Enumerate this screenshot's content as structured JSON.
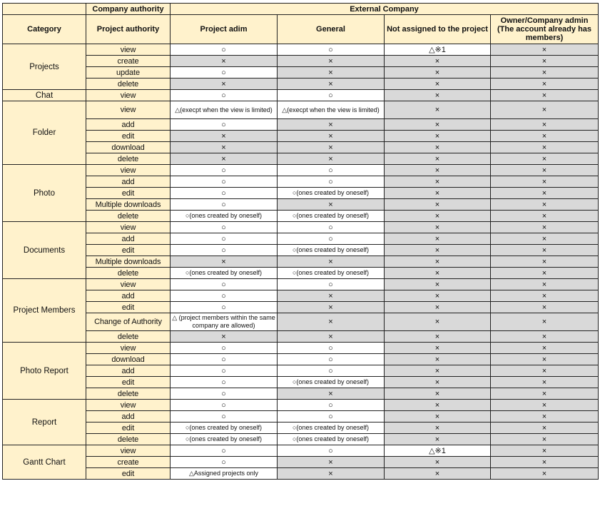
{
  "header": {
    "company_authority": "Company authority",
    "external_company": "External Company",
    "category": "Category",
    "project_authority": "Project authority",
    "columns": [
      "Project adim",
      "General",
      "Not assigned to the project",
      "Owner/Company admin (The account already has members)"
    ]
  },
  "colors": {
    "header_bg": "#fff2cc",
    "denied_bg": "#d9d9d9",
    "allowed_bg": "#ffffff"
  },
  "groups": [
    {
      "category": "Projects",
      "rows": [
        {
          "action": "view",
          "values": [
            "○",
            "○",
            "△※1",
            "×"
          ]
        },
        {
          "action": "create",
          "values": [
            "×",
            "×",
            "×",
            "×"
          ]
        },
        {
          "action": "update",
          "values": [
            "○",
            "×",
            "×",
            "×"
          ]
        },
        {
          "action": "delete",
          "values": [
            "×",
            "×",
            "×",
            "×"
          ]
        }
      ]
    },
    {
      "category": "Chat",
      "rows": [
        {
          "action": "view",
          "values": [
            "○",
            "○",
            "×",
            "×"
          ]
        }
      ]
    },
    {
      "category": "Folder",
      "rows": [
        {
          "action": "view",
          "values": [
            "△(execpt when the view is limited)",
            "△(execpt when the view is limited)",
            "×",
            "×"
          ]
        },
        {
          "action": "add",
          "values": [
            "○",
            "×",
            "×",
            "×"
          ]
        },
        {
          "action": "edit",
          "values": [
            "×",
            "×",
            "×",
            "×"
          ]
        },
        {
          "action": "download",
          "values": [
            "×",
            "×",
            "×",
            "×"
          ]
        },
        {
          "action": "delete",
          "values": [
            "×",
            "×",
            "×",
            "×"
          ]
        }
      ]
    },
    {
      "category": "Photo",
      "rows": [
        {
          "action": "view",
          "values": [
            "○",
            "○",
            "×",
            "×"
          ]
        },
        {
          "action": "add",
          "values": [
            "○",
            "○",
            "×",
            "×"
          ]
        },
        {
          "action": "edit",
          "values": [
            "○",
            "○(ones created by oneself)",
            "×",
            "×"
          ]
        },
        {
          "action": "Multiple downloads",
          "values": [
            "○",
            "×",
            "×",
            "×"
          ]
        },
        {
          "action": "delete",
          "values": [
            "○(ones created by oneself)",
            "○(ones created by oneself)",
            "×",
            "×"
          ]
        }
      ]
    },
    {
      "category": "Documents",
      "rows": [
        {
          "action": "view",
          "values": [
            "○",
            "○",
            "×",
            "×"
          ]
        },
        {
          "action": "add",
          "values": [
            "○",
            "○",
            "×",
            "×"
          ]
        },
        {
          "action": "edit",
          "values": [
            "○",
            "○(ones created by oneself)",
            "×",
            "×"
          ]
        },
        {
          "action": "Multiple downloads",
          "values": [
            "×",
            "×",
            "×",
            "×"
          ]
        },
        {
          "action": "delete",
          "values": [
            "○(ones created by oneself)",
            "○(ones created by oneself)",
            "×",
            "×"
          ]
        }
      ]
    },
    {
      "category": "Project Members",
      "rows": [
        {
          "action": "view",
          "values": [
            "○",
            "○",
            "×",
            "×"
          ]
        },
        {
          "action": "add",
          "values": [
            "○",
            "×",
            "×",
            "×"
          ]
        },
        {
          "action": "edit",
          "values": [
            "○",
            "×",
            "×",
            "×"
          ]
        },
        {
          "action": "Change of Authority",
          "values": [
            "△ (project members within the same company are allowed)",
            "×",
            "×",
            "×"
          ]
        },
        {
          "action": "delete",
          "values": [
            "×",
            "×",
            "×",
            "×"
          ]
        }
      ]
    },
    {
      "category": "Photo Report",
      "rows": [
        {
          "action": "view",
          "values": [
            "○",
            "○",
            "×",
            "×"
          ]
        },
        {
          "action": "download",
          "values": [
            "○",
            "○",
            "×",
            "×"
          ]
        },
        {
          "action": "add",
          "values": [
            "○",
            "○",
            "×",
            "×"
          ]
        },
        {
          "action": "edit",
          "values": [
            "○",
            "○(ones created by oneself)",
            "×",
            "×"
          ]
        },
        {
          "action": "delete",
          "values": [
            "○",
            "×",
            "×",
            "×"
          ]
        }
      ]
    },
    {
      "category": "Report",
      "rows": [
        {
          "action": "view",
          "values": [
            "○",
            "○",
            "×",
            "×"
          ]
        },
        {
          "action": "add",
          "values": [
            "○",
            "○",
            "×",
            "×"
          ]
        },
        {
          "action": "edit",
          "values": [
            "○(ones created by oneself)",
            "○(ones created by oneself)",
            "×",
            "×"
          ]
        },
        {
          "action": "delete",
          "values": [
            "○(ones created by oneself)",
            "○(ones created by oneself)",
            "×",
            "×"
          ]
        }
      ]
    },
    {
      "category": "Gantt Chart",
      "rows": [
        {
          "action": "view",
          "values": [
            "○",
            "○",
            "△※1",
            "×"
          ]
        },
        {
          "action": "create",
          "values": [
            "○",
            "×",
            "×",
            "×"
          ]
        },
        {
          "action": "edit",
          "values": [
            "△Assigned projects only",
            "×",
            "×",
            "×"
          ]
        }
      ]
    }
  ]
}
